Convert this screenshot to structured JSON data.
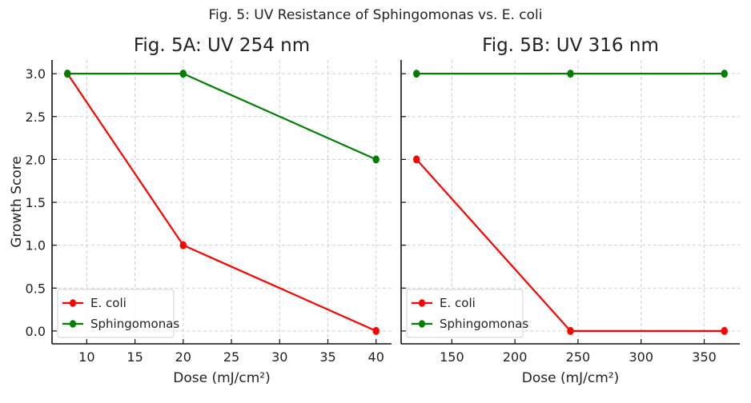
{
  "chart_data": {
    "suptitle": "Fig. 5: UV Resistance of Sphingomonas vs. E. coli",
    "panels": [
      {
        "type": "line",
        "title": "Fig. 5A: UV 254 nm",
        "xlabel": "Dose (mJ/cm²)",
        "ylabel": "Growth Score",
        "xlim": [
          6.4,
          41.6
        ],
        "ylim": [
          -0.15,
          3.16
        ],
        "xticks": [
          10,
          15,
          20,
          25,
          30,
          35,
          40
        ],
        "yticks": [
          0.0,
          0.5,
          1.0,
          1.5,
          2.0,
          2.5,
          3.0
        ],
        "ytick_labels": [
          "0.0",
          "0.5",
          "1.0",
          "1.5",
          "2.0",
          "2.5",
          "3.0"
        ],
        "grid": true,
        "legend": "lower-left",
        "series": [
          {
            "name": "E. coli",
            "color": "#ff0000",
            "x": [
              8,
              20,
              40
            ],
            "y": [
              3,
              1,
              0
            ]
          },
          {
            "name": "Sphingomonas",
            "color": "#008000",
            "x": [
              8,
              20,
              40
            ],
            "y": [
              3,
              3,
              2
            ]
          }
        ]
      },
      {
        "type": "line",
        "title": "Fig. 5B: UV 316 nm",
        "xlabel": "Dose (mJ/cm²)",
        "ylabel": "",
        "xlim": [
          109.8,
          378.2
        ],
        "ylim": [
          -0.15,
          3.16
        ],
        "xticks": [
          150,
          200,
          250,
          300,
          350
        ],
        "yticks": [
          0.0,
          0.5,
          1.0,
          1.5,
          2.0,
          2.5,
          3.0
        ],
        "ytick_labels": [],
        "grid": true,
        "legend": "lower-left",
        "series": [
          {
            "name": "E. coli",
            "color": "#ff0000",
            "x": [
              122,
              244,
              366
            ],
            "y": [
              2,
              0,
              0
            ]
          },
          {
            "name": "Sphingomonas",
            "color": "#008000",
            "x": [
              122,
              244,
              366
            ],
            "y": [
              3,
              3,
              3
            ]
          }
        ]
      }
    ]
  }
}
